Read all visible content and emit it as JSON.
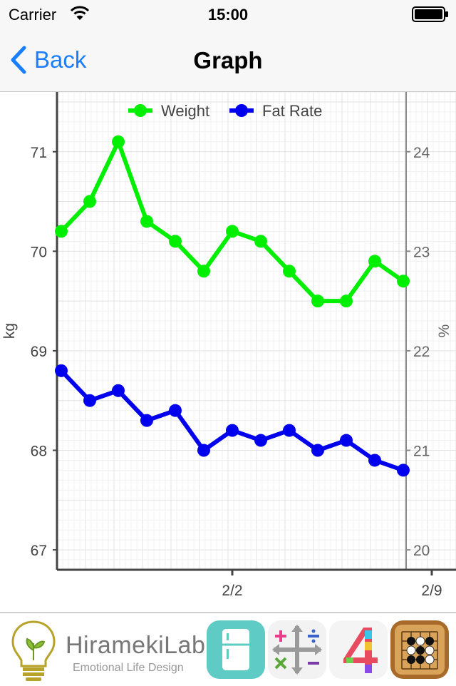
{
  "status": {
    "carrier": "Carrier",
    "time": "15:00"
  },
  "nav": {
    "back_label": "Back",
    "title": "Graph"
  },
  "chart_data": {
    "type": "line",
    "legend": [
      "Weight",
      "Fat Rate"
    ],
    "legend_position": "top",
    "ylabel_left": "kg",
    "ylabel_right": "%",
    "x_tick_labels": [
      "2/2",
      "2/9"
    ],
    "left_ticks": [
      "67",
      "68",
      "69",
      "70",
      "71"
    ],
    "right_ticks": [
      "20",
      "21",
      "22",
      "23",
      "24"
    ],
    "ylim_left": [
      66.8,
      71.6
    ],
    "ylim_right": [
      19.8,
      24.6
    ],
    "grid": true,
    "colors": {
      "weight": "#00ee00",
      "fat": "#0000ee"
    },
    "series": [
      {
        "name": "Weight",
        "axis": "left",
        "values": [
          70.2,
          70.5,
          71.1,
          70.3,
          70.1,
          69.8,
          70.2,
          70.1,
          69.8,
          69.5,
          69.5,
          69.9,
          69.7
        ]
      },
      {
        "name": "Fat Rate",
        "axis": "right",
        "values": [
          21.8,
          21.5,
          21.6,
          21.3,
          21.4,
          21.0,
          21.2,
          21.1,
          21.2,
          21.0,
          21.1,
          20.9,
          20.8
        ]
      }
    ]
  },
  "ads": {
    "brand": "HiramekiLab",
    "tagline": "Emotional Life Design",
    "apps": [
      "fridge-app-icon",
      "calculator-app-icon",
      "four-app-icon",
      "go-game-app-icon"
    ]
  }
}
